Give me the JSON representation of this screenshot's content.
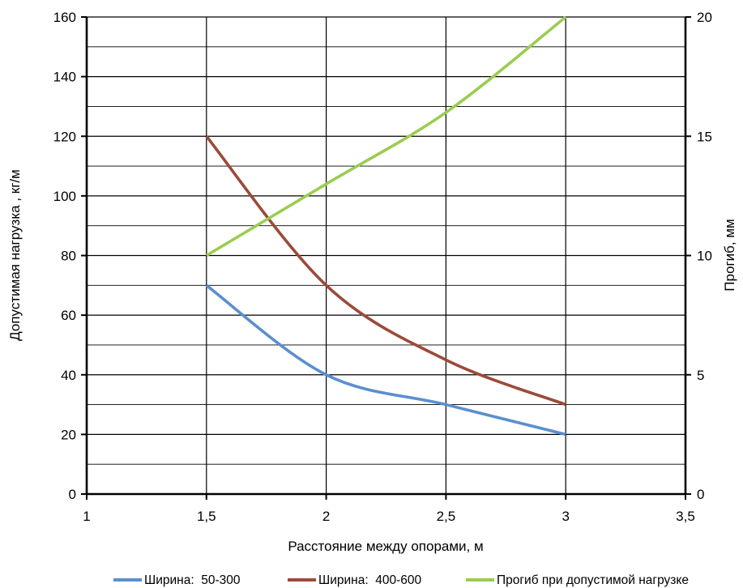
{
  "chart_data": {
    "type": "line",
    "x": [
      1.5,
      2,
      2.5,
      3
    ],
    "series": [
      {
        "name": "Ширина:  50-300",
        "axis": "left",
        "values": [
          70,
          40,
          30,
          20
        ],
        "color": "#5b8fd0"
      },
      {
        "name": "Ширина:  400-600",
        "axis": "left",
        "values": [
          120,
          70,
          45,
          30
        ],
        "color": "#9c4a3a"
      },
      {
        "name": "Прогиб при допустимой нагрузке",
        "axis": "right",
        "values": [
          10,
          13,
          16,
          20
        ],
        "color": "#9acd4f"
      }
    ],
    "xlabel": "Расстояние между опорами, м",
    "ylabel": "Допустимая нагрузка , кг/м",
    "y2label": "Прогиб, мм",
    "xlim": [
      1,
      3.5
    ],
    "ylim": [
      0,
      160
    ],
    "y2lim": [
      0,
      20
    ],
    "xticks": [
      1,
      1.5,
      2,
      2.5,
      3,
      3.5
    ],
    "xtick_labels": [
      "1",
      "1,5",
      "2",
      "2,5",
      "3",
      "3,5"
    ],
    "yticks": [
      0,
      20,
      40,
      60,
      80,
      100,
      120,
      140,
      160
    ],
    "y2ticks": [
      0,
      5,
      10,
      15,
      20
    ],
    "grid": true,
    "smooth": true,
    "legend": "bottom"
  }
}
